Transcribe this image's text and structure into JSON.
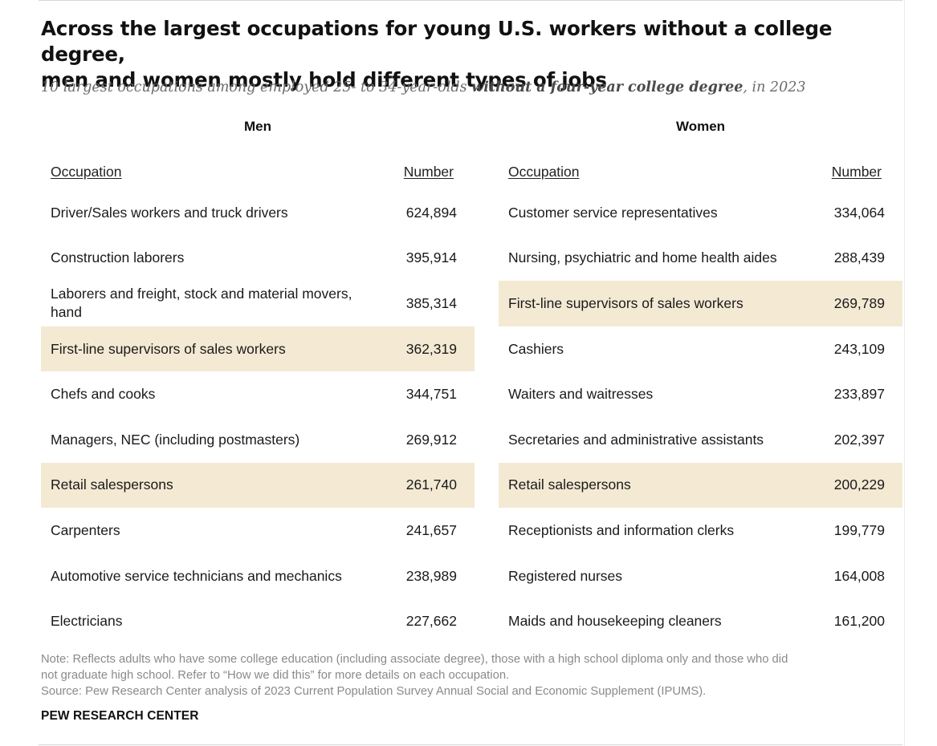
{
  "title_line1": "Across the largest occupations for young U.S. workers without a college degree,",
  "title_line2": "men and women mostly hold different types of jobs",
  "subtitle_pre": "10 largest occupations among employed 25- to 34-year-olds ",
  "subtitle_bold": "without a four-year college degree",
  "subtitle_post": ", in 2023",
  "colors": {
    "highlight": "#f4e9d3",
    "note_text": "#8a8a8a"
  },
  "chart_data": {
    "type": "table",
    "title": "Across the largest occupations for young U.S. workers without a college degree, men and women mostly hold different types of jobs",
    "columns": [
      "Occupation",
      "Number"
    ],
    "men": {
      "label": "Men",
      "occupation_header": "Occupation",
      "number_header": "Number",
      "rows": [
        {
          "occupation": "Driver/Sales workers and truck drivers",
          "number": "624,894",
          "highlight": false
        },
        {
          "occupation": "Construction laborers",
          "number": "395,914",
          "highlight": false
        },
        {
          "occupation": "Laborers and freight, stock and material movers, hand",
          "number": "385,314",
          "highlight": false
        },
        {
          "occupation": "First-line supervisors of sales workers",
          "number": "362,319",
          "highlight": true
        },
        {
          "occupation": "Chefs and cooks",
          "number": "344,751",
          "highlight": false
        },
        {
          "occupation": "Managers, NEC (including postmasters)",
          "number": "269,912",
          "highlight": false
        },
        {
          "occupation": "Retail salespersons",
          "number": "261,740",
          "highlight": true
        },
        {
          "occupation": "Carpenters",
          "number": "241,657",
          "highlight": false
        },
        {
          "occupation": "Automotive service technicians and mechanics",
          "number": "238,989",
          "highlight": false
        },
        {
          "occupation": "Electricians",
          "number": "227,662",
          "highlight": false
        }
      ]
    },
    "women": {
      "label": "Women",
      "occupation_header": "Occupation",
      "number_header": "Number",
      "rows": [
        {
          "occupation": "Customer service representatives",
          "number": "334,064",
          "highlight": false
        },
        {
          "occupation": "Nursing, psychiatric and home health aides",
          "number": "288,439",
          "highlight": false
        },
        {
          "occupation": "First-line supervisors of sales workers",
          "number": "269,789",
          "highlight": true
        },
        {
          "occupation": "Cashiers",
          "number": "243,109",
          "highlight": false
        },
        {
          "occupation": "Waiters and waitresses",
          "number": "233,897",
          "highlight": false
        },
        {
          "occupation": "Secretaries and administrative assistants",
          "number": "202,397",
          "highlight": false
        },
        {
          "occupation": "Retail salespersons",
          "number": "200,229",
          "highlight": true
        },
        {
          "occupation": "Receptionists and information clerks",
          "number": "199,779",
          "highlight": false
        },
        {
          "occupation": "Registered nurses",
          "number": "164,008",
          "highlight": false
        },
        {
          "occupation": "Maids and housekeeping cleaners",
          "number": "161,200",
          "highlight": false
        }
      ]
    }
  },
  "note_line1": "Note: Reflects adults who have some college education (including associate degree), those with a high school diploma only and those who did",
  "note_line2": "not graduate high school. Refer to “How we did this” for more details on each occupation.",
  "source_line": "Source: Pew Research Center analysis of 2023 Current Population Survey Annual Social and Economic Supplement (IPUMS).",
  "brand": "PEW RESEARCH CENTER"
}
